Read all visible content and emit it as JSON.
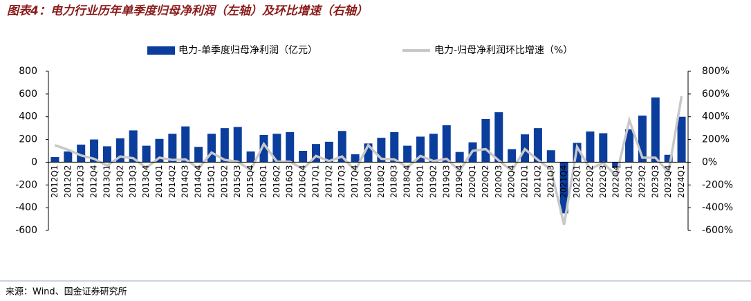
{
  "chart_data": {
    "type": "bar",
    "title": "图表4：电力行业历年单季度归母净利润（左轴）及环比增速（右轴）",
    "source": "来源：Wind、国金证券研究所",
    "categories": [
      "2012Q1",
      "2012Q2",
      "2012Q3",
      "2012Q4",
      "2013Q1",
      "2013Q2",
      "2013Q3",
      "2013Q4",
      "2014Q1",
      "2014Q2",
      "2014Q3",
      "2014Q4",
      "2015Q1",
      "2015Q2",
      "2015Q3",
      "2015Q4",
      "2016Q1",
      "2016Q2",
      "2016Q3",
      "2016Q4",
      "2017Q1",
      "2017Q2",
      "2017Q3",
      "2017Q4",
      "2018Q1",
      "2018Q2",
      "2018Q3",
      "2018Q4",
      "2019Q1",
      "2019Q2",
      "2019Q3",
      "2019Q4",
      "2020Q1",
      "2020Q2",
      "2020Q3",
      "2020Q4",
      "2021Q1",
      "2021Q2",
      "2021Q3",
      "2021Q4",
      "2022Q1",
      "2022Q2",
      "2022Q3",
      "2022Q4",
      "2023Q1",
      "2023Q2",
      "2023Q3",
      "2023Q4",
      "2024Q1"
    ],
    "series": [
      {
        "name": "电力-单季度归母净利润（亿元）",
        "color": "#0b3d9c",
        "values": [
          45,
          95,
          155,
          200,
          140,
          210,
          280,
          145,
          205,
          250,
          315,
          135,
          250,
          300,
          310,
          95,
          240,
          250,
          265,
          100,
          160,
          180,
          275,
          70,
          165,
          215,
          265,
          145,
          225,
          250,
          325,
          90,
          175,
          380,
          440,
          115,
          245,
          300,
          105,
          -450,
          170,
          270,
          255,
          -50,
          290,
          410,
          570,
          65,
          400
        ]
      },
      {
        "name": "电力-归母净利润环比增速（%）",
        "color": "#c8c8c8",
        "axis": "y2",
        "values": [
          150,
          110,
          60,
          30,
          -30,
          50,
          35,
          -50,
          40,
          20,
          25,
          -55,
          85,
          20,
          5,
          -70,
          160,
          5,
          5,
          -60,
          55,
          10,
          50,
          -75,
          150,
          30,
          25,
          -45,
          55,
          10,
          30,
          -75,
          100,
          115,
          15,
          -75,
          115,
          20,
          -65,
          -550,
          135,
          -60,
          -5,
          -120,
          370,
          40,
          40,
          -90,
          580
        ]
      }
    ],
    "ylim": [
      -600,
      800
    ],
    "yticks": [
      -600,
      -400,
      -200,
      0,
      200,
      400,
      600,
      800
    ],
    "y2lim": [
      -600,
      800
    ],
    "y2ticks": [
      {
        "value": -600,
        "label": "-600%"
      },
      {
        "value": -400,
        "label": "-400%"
      },
      {
        "value": -200,
        "label": "-200%"
      },
      {
        "value": 0,
        "label": "0%"
      },
      {
        "value": 200,
        "label": "200%"
      },
      {
        "value": 400,
        "label": "400%"
      },
      {
        "value": 600,
        "label": "600%"
      },
      {
        "value": 800,
        "label": "800%"
      }
    ]
  }
}
